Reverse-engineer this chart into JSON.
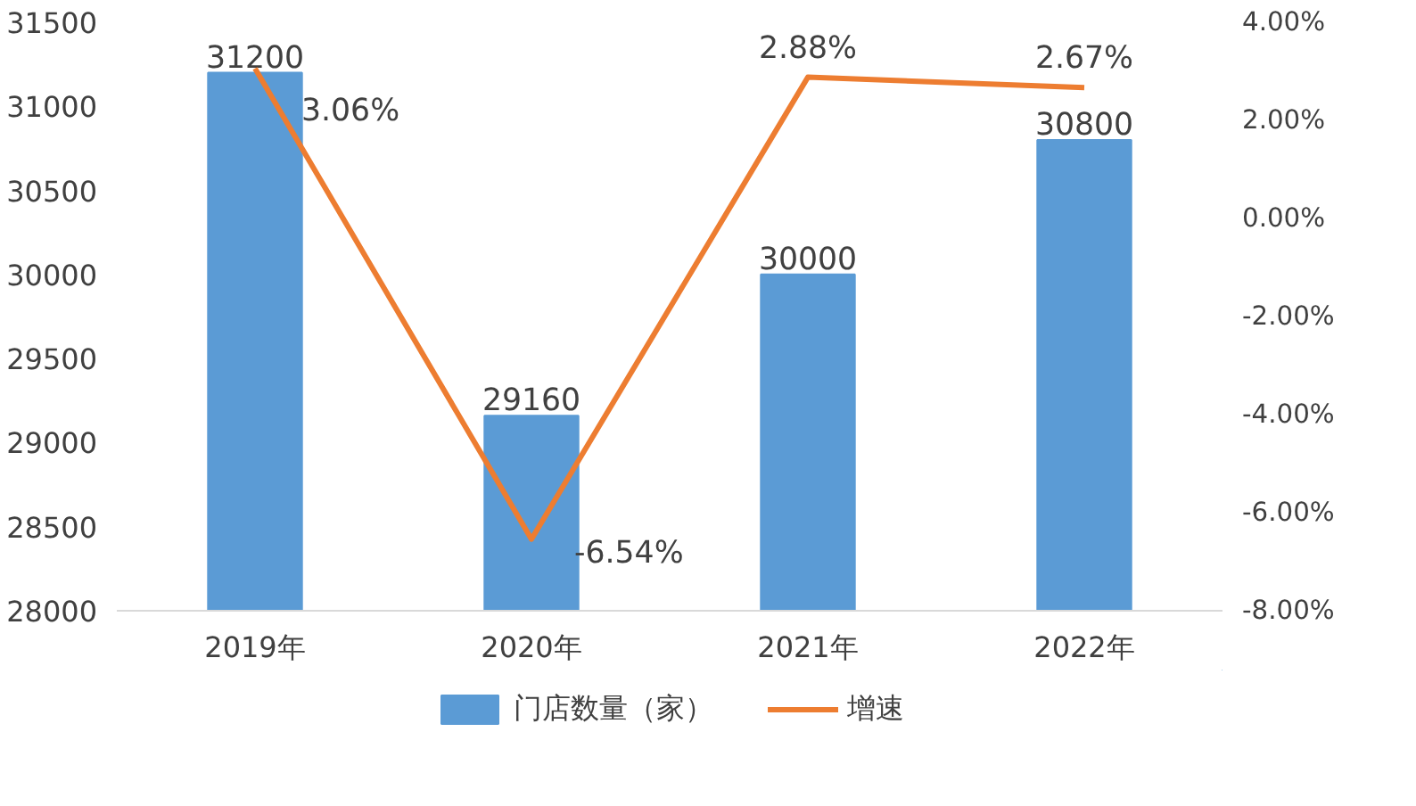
{
  "chart_data": {
    "type": "bar",
    "categories": [
      "2019年",
      "2020年",
      "2021年",
      "2022年"
    ],
    "series": [
      {
        "name": "门店数量（家）",
        "color": "#5b9bd5",
        "values": [
          31200,
          29160,
          30000,
          30800
        ],
        "value_labels": [
          "31200",
          "29160",
          "30000",
          "30800"
        ]
      },
      {
        "name": "增速",
        "type": "line",
        "axis": "y2",
        "color": "#ed7d31",
        "values": [
          3.06,
          -6.54,
          2.88,
          2.67
        ],
        "value_labels": [
          "3.06%",
          "-6.54%",
          "2.88%",
          "2.67%"
        ]
      }
    ],
    "ylim": [
      28000,
      31500
    ],
    "yticks": [
      28000,
      28500,
      29000,
      29500,
      30000,
      30500,
      31000,
      31500
    ],
    "y2lim": [
      -8,
      4
    ],
    "y2ticks": [
      {
        "value": -8,
        "label": "-8.00%"
      },
      {
        "value": -6,
        "label": "-6.00%"
      },
      {
        "value": -4,
        "label": "-4.00%"
      },
      {
        "value": -2,
        "label": "-2.00%"
      },
      {
        "value": 0,
        "label": "0.00%"
      },
      {
        "value": 2,
        "label": "2.00%"
      },
      {
        "value": 4,
        "label": "4.00%"
      }
    ],
    "grid": false,
    "legend": "bottom",
    "marker": "none",
    "line_style": "solid"
  }
}
